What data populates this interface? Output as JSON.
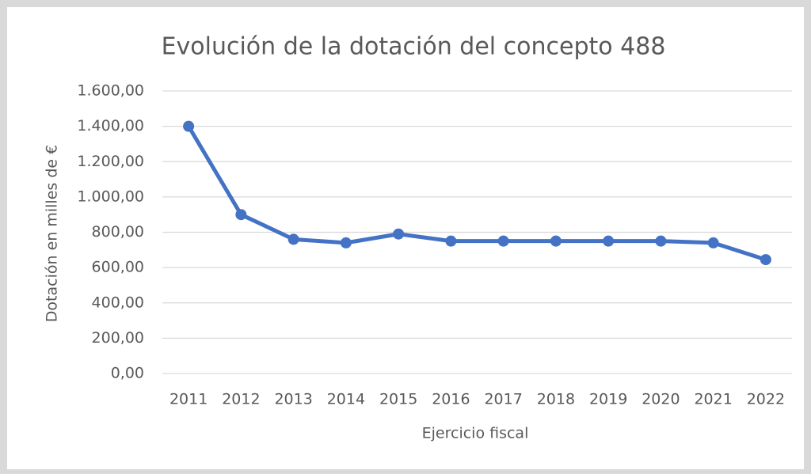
{
  "chart_data": {
    "type": "line",
    "title": "Evolución de la dotación del concepto 488",
    "x_label": "Ejercicio fiscal",
    "y_label": "Dotación en milles de €",
    "categories": [
      "2011",
      "2012",
      "2013",
      "2014",
      "2015",
      "2016",
      "2017",
      "2018",
      "2019",
      "2020",
      "2021",
      "2022"
    ],
    "values": [
      1400,
      900,
      760,
      740,
      790,
      750,
      750,
      750,
      750,
      750,
      740,
      645
    ],
    "color": "#4472c4",
    "ylim": [
      0,
      1600
    ],
    "yticks": [
      {
        "value": 0,
        "label": "0,00"
      },
      {
        "value": 200,
        "label": "200,00"
      },
      {
        "value": 400,
        "label": "400,00"
      },
      {
        "value": 600,
        "label": "600,00"
      },
      {
        "value": 800,
        "label": "800,00"
      },
      {
        "value": 1000,
        "label": "1.000,00"
      },
      {
        "value": 1200,
        "label": "1.200,00"
      },
      {
        "value": 1400,
        "label": "1.400,00"
      },
      {
        "value": 1600,
        "label": "1.600,00"
      }
    ],
    "grid": true
  }
}
